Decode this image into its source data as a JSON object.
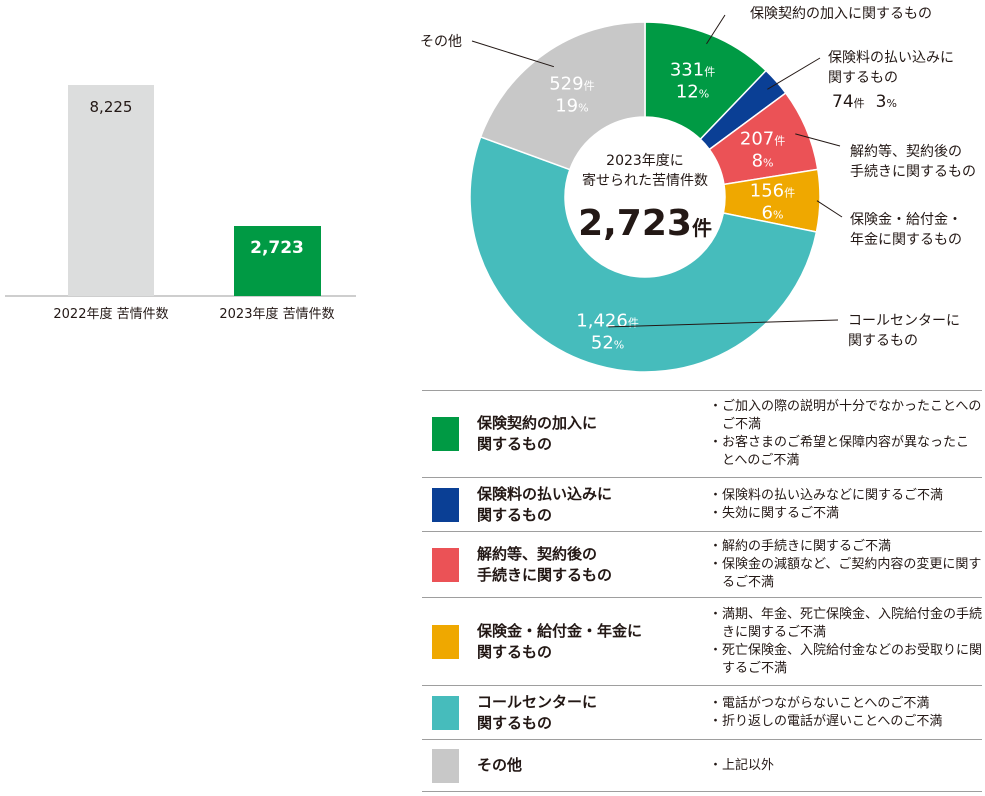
{
  "bar_chart": {
    "type": "bar",
    "categories": [
      "2022年度 苦情件数",
      "2023年度 苦情件数"
    ],
    "values": [
      8225,
      2723
    ],
    "value_labels": [
      "8,225",
      "2,723"
    ],
    "colors": [
      "#dcdddd",
      "#009a44"
    ]
  },
  "chart_data": {
    "type": "pie",
    "center_title": [
      "2023年度に",
      "寄せられた苦情件数"
    ],
    "center_total": "2,723",
    "center_unit": "件",
    "slices": [
      {
        "key": "kanyu",
        "category": "保険契約の加入に関するもの",
        "value": 331,
        "percent": 12,
        "color": "#009a44"
      },
      {
        "key": "haraikomi",
        "category": "保険料の払い込みに関するもの",
        "value": 74,
        "percent": 3,
        "color": "#0a3f95"
      },
      {
        "key": "kaiyaku",
        "category": "解約等、契約後の手続きに関するもの",
        "value": 207,
        "percent": 8,
        "color": "#eb5256"
      },
      {
        "key": "kyufu",
        "category": "保険金・給付金・年金に関するもの",
        "value": 156,
        "percent": 6,
        "color": "#efa800"
      },
      {
        "key": "call",
        "category": "コールセンターに関するもの",
        "value": 1426,
        "percent": 52,
        "color": "#46bcbc"
      },
      {
        "key": "other",
        "category": "その他",
        "value": 529,
        "percent": 19,
        "color": "#c8c8c8"
      }
    ],
    "inner_labels": [
      {
        "key": "kanyu",
        "count": "331",
        "pct": "12"
      },
      {
        "key": "kaiyaku",
        "count": "207",
        "pct": "8"
      },
      {
        "key": "kyufu",
        "count": "156",
        "pct": "6"
      },
      {
        "key": "call",
        "count": "1,426",
        "pct": "52"
      },
      {
        "key": "other",
        "count": "529",
        "pct": "19"
      }
    ],
    "callouts": [
      {
        "key": "kanyu",
        "lines": [
          "保険契約の加入に関するもの"
        ]
      },
      {
        "key": "haraikomi",
        "lines": [
          "保険料の払い込みに",
          "関するもの"
        ],
        "count": "74",
        "pct": "3"
      },
      {
        "key": "kaiyaku",
        "lines": [
          "解約等、契約後の",
          "手続きに関するもの"
        ]
      },
      {
        "key": "kyufu",
        "lines": [
          "保険金・給付金・",
          "年金に関するもの"
        ]
      },
      {
        "key": "call",
        "lines": [
          "コールセンターに",
          "関するもの"
        ]
      },
      {
        "key": "other",
        "lines": [
          "その他"
        ]
      }
    ],
    "unit_count": "件",
    "unit_pct": "%"
  },
  "legend": [
    {
      "color": "#009a44",
      "label": "保険契約の加入に\n関するもの",
      "items": [
        "ご加入の際の説明が十分でなかったことへのご不満",
        "お客さまのご希望と保障内容が異なったことへのご不満"
      ]
    },
    {
      "color": "#0a3f95",
      "label": "保険料の払い込みに\n関するもの",
      "items": [
        "保険料の払い込みなどに関するご不満",
        "失効に関するご不満"
      ]
    },
    {
      "color": "#eb5256",
      "label": "解約等、契約後の\n手続きに関するもの",
      "items": [
        "解約の手続きに関するご不満",
        "保険金の減額など、ご契約内容の変更に関するご不満"
      ]
    },
    {
      "color": "#efa800",
      "label": "保険金・給付金・年金に\n関するもの",
      "items": [
        "満期、年金、死亡保険金、入院給付金の手続きに関するご不満",
        "死亡保険金、入院給付金などのお受取りに関するご不満"
      ]
    },
    {
      "color": "#46bcbc",
      "label": "コールセンターに\n関するもの",
      "items": [
        "電話がつながらないことへのご不満",
        "折り返しの電話が遅いことへのご不満"
      ]
    },
    {
      "color": "#c8c8c8",
      "label": "その他",
      "items": [
        "上記以外"
      ]
    }
  ]
}
